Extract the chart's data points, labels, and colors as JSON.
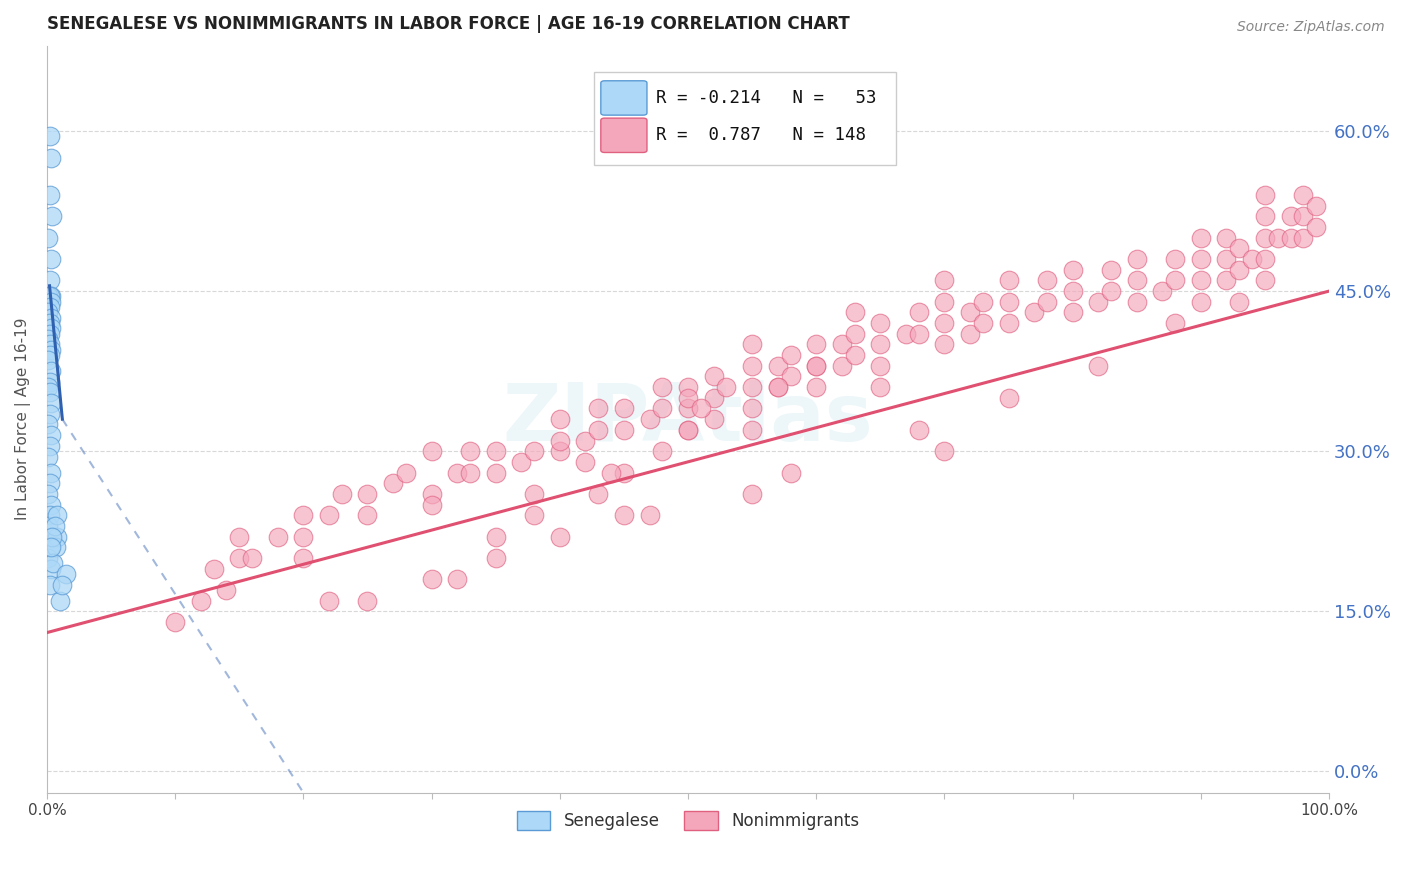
{
  "title": "SENEGALESE VS NONIMMIGRANTS IN LABOR FORCE | AGE 16-19 CORRELATION CHART",
  "source": "Source: ZipAtlas.com",
  "ylabel": "In Labor Force | Age 16-19",
  "xlim": [
    0.0,
    1.0
  ],
  "ylim": [
    -0.02,
    0.68
  ],
  "yticks": [
    0.0,
    0.15,
    0.3,
    0.45,
    0.6
  ],
  "ytick_labels": [
    "0.0%",
    "15.0%",
    "30.0%",
    "45.0%",
    "60.0%"
  ],
  "xticks": [
    0.0,
    0.1,
    0.2,
    0.3,
    0.4,
    0.5,
    0.6,
    0.7,
    0.8,
    0.9,
    1.0
  ],
  "xtick_labels": [
    "0.0%",
    "",
    "",
    "",
    "",
    "",
    "",
    "",
    "",
    "",
    "100.0%"
  ],
  "color_senegalese_fill": "#add8f7",
  "color_senegalese_edge": "#5b9bd5",
  "color_nonimmigrants_fill": "#f4a7bb",
  "color_nonimmigrants_edge": "#e06080",
  "color_line_senegalese": "#3060b0",
  "color_line_nonimmigrants": "#e05070",
  "color_axis_right": "#4472c4",
  "color_grid": "#d8d8d8",
  "background_color": "#ffffff",
  "watermark": "ZIPAtlas",
  "pink_line_x0": 0.0,
  "pink_line_y0": 0.13,
  "pink_line_x1": 1.0,
  "pink_line_y1": 0.45,
  "blue_line_solid_x0": 0.002,
  "blue_line_solid_y0": 0.455,
  "blue_line_solid_x1": 0.012,
  "blue_line_solid_y1": 0.33,
  "blue_line_dash_x0": 0.012,
  "blue_line_dash_y0": 0.33,
  "blue_line_dash_x1": 0.2,
  "blue_line_dash_y1": -0.02,
  "senegalese_x": [
    0.002,
    0.003,
    0.002,
    0.004,
    0.001,
    0.003,
    0.002,
    0.003,
    0.001,
    0.002,
    0.003,
    0.002,
    0.001,
    0.003,
    0.002,
    0.003,
    0.002,
    0.001,
    0.002,
    0.003,
    0.002,
    0.001,
    0.003,
    0.002,
    0.001,
    0.002,
    0.003,
    0.002,
    0.001,
    0.003,
    0.002,
    0.001,
    0.003,
    0.002,
    0.001,
    0.003,
    0.002,
    0.001,
    0.003,
    0.002,
    0.001,
    0.003,
    0.002,
    0.01,
    0.008,
    0.007,
    0.005,
    0.015,
    0.012,
    0.008,
    0.006,
    0.004,
    0.003
  ],
  "senegalese_y": [
    0.595,
    0.575,
    0.54,
    0.52,
    0.5,
    0.48,
    0.46,
    0.445,
    0.445,
    0.445,
    0.44,
    0.435,
    0.43,
    0.425,
    0.42,
    0.415,
    0.41,
    0.405,
    0.4,
    0.395,
    0.39,
    0.385,
    0.375,
    0.365,
    0.36,
    0.355,
    0.345,
    0.335,
    0.325,
    0.315,
    0.305,
    0.295,
    0.28,
    0.27,
    0.26,
    0.25,
    0.24,
    0.23,
    0.22,
    0.21,
    0.2,
    0.19,
    0.175,
    0.16,
    0.22,
    0.21,
    0.195,
    0.185,
    0.175,
    0.24,
    0.23,
    0.22,
    0.21
  ],
  "nonimmigrants_x": [
    0.1,
    0.12,
    0.13,
    0.14,
    0.15,
    0.15,
    0.16,
    0.18,
    0.2,
    0.2,
    0.22,
    0.23,
    0.25,
    0.25,
    0.27,
    0.28,
    0.3,
    0.3,
    0.32,
    0.33,
    0.33,
    0.35,
    0.35,
    0.37,
    0.38,
    0.4,
    0.4,
    0.4,
    0.42,
    0.43,
    0.43,
    0.45,
    0.45,
    0.47,
    0.48,
    0.48,
    0.5,
    0.5,
    0.5,
    0.52,
    0.52,
    0.53,
    0.55,
    0.55,
    0.55,
    0.55,
    0.57,
    0.57,
    0.58,
    0.58,
    0.6,
    0.6,
    0.6,
    0.62,
    0.62,
    0.63,
    0.63,
    0.63,
    0.65,
    0.65,
    0.65,
    0.67,
    0.68,
    0.68,
    0.7,
    0.7,
    0.7,
    0.7,
    0.72,
    0.72,
    0.73,
    0.73,
    0.75,
    0.75,
    0.75,
    0.77,
    0.78,
    0.78,
    0.8,
    0.8,
    0.8,
    0.82,
    0.83,
    0.83,
    0.85,
    0.85,
    0.85,
    0.87,
    0.88,
    0.88,
    0.9,
    0.9,
    0.9,
    0.9,
    0.92,
    0.92,
    0.92,
    0.93,
    0.93,
    0.94,
    0.95,
    0.95,
    0.95,
    0.95,
    0.95,
    0.96,
    0.97,
    0.97,
    0.98,
    0.98,
    0.98,
    0.99,
    0.99,
    0.2,
    0.35,
    0.48,
    0.55,
    0.3,
    0.42,
    0.5,
    0.25,
    0.38,
    0.52,
    0.45,
    0.6,
    0.38,
    0.44,
    0.51,
    0.57,
    0.43,
    0.5,
    0.65,
    0.35,
    0.45,
    0.3,
    0.4,
    0.55,
    0.7,
    0.22,
    0.32,
    0.47,
    0.58,
    0.68,
    0.75,
    0.82,
    0.88,
    0.93
  ],
  "nonimmigrants_y": [
    0.14,
    0.16,
    0.19,
    0.17,
    0.2,
    0.22,
    0.2,
    0.22,
    0.22,
    0.24,
    0.24,
    0.26,
    0.24,
    0.26,
    0.27,
    0.28,
    0.26,
    0.3,
    0.28,
    0.28,
    0.3,
    0.28,
    0.3,
    0.29,
    0.3,
    0.3,
    0.31,
    0.33,
    0.31,
    0.32,
    0.34,
    0.32,
    0.34,
    0.33,
    0.34,
    0.36,
    0.32,
    0.34,
    0.36,
    0.35,
    0.37,
    0.36,
    0.34,
    0.36,
    0.38,
    0.4,
    0.36,
    0.38,
    0.37,
    0.39,
    0.36,
    0.38,
    0.4,
    0.38,
    0.4,
    0.39,
    0.41,
    0.43,
    0.38,
    0.4,
    0.42,
    0.41,
    0.41,
    0.43,
    0.4,
    0.42,
    0.44,
    0.46,
    0.41,
    0.43,
    0.42,
    0.44,
    0.42,
    0.44,
    0.46,
    0.43,
    0.44,
    0.46,
    0.43,
    0.45,
    0.47,
    0.44,
    0.45,
    0.47,
    0.44,
    0.46,
    0.48,
    0.45,
    0.46,
    0.48,
    0.44,
    0.46,
    0.48,
    0.5,
    0.46,
    0.48,
    0.5,
    0.47,
    0.49,
    0.48,
    0.46,
    0.48,
    0.5,
    0.52,
    0.54,
    0.5,
    0.5,
    0.52,
    0.5,
    0.52,
    0.54,
    0.51,
    0.53,
    0.2,
    0.22,
    0.3,
    0.32,
    0.25,
    0.29,
    0.35,
    0.16,
    0.26,
    0.33,
    0.28,
    0.38,
    0.24,
    0.28,
    0.34,
    0.36,
    0.26,
    0.32,
    0.36,
    0.2,
    0.24,
    0.18,
    0.22,
    0.26,
    0.3,
    0.16,
    0.18,
    0.24,
    0.28,
    0.32,
    0.35,
    0.38,
    0.42,
    0.44
  ]
}
